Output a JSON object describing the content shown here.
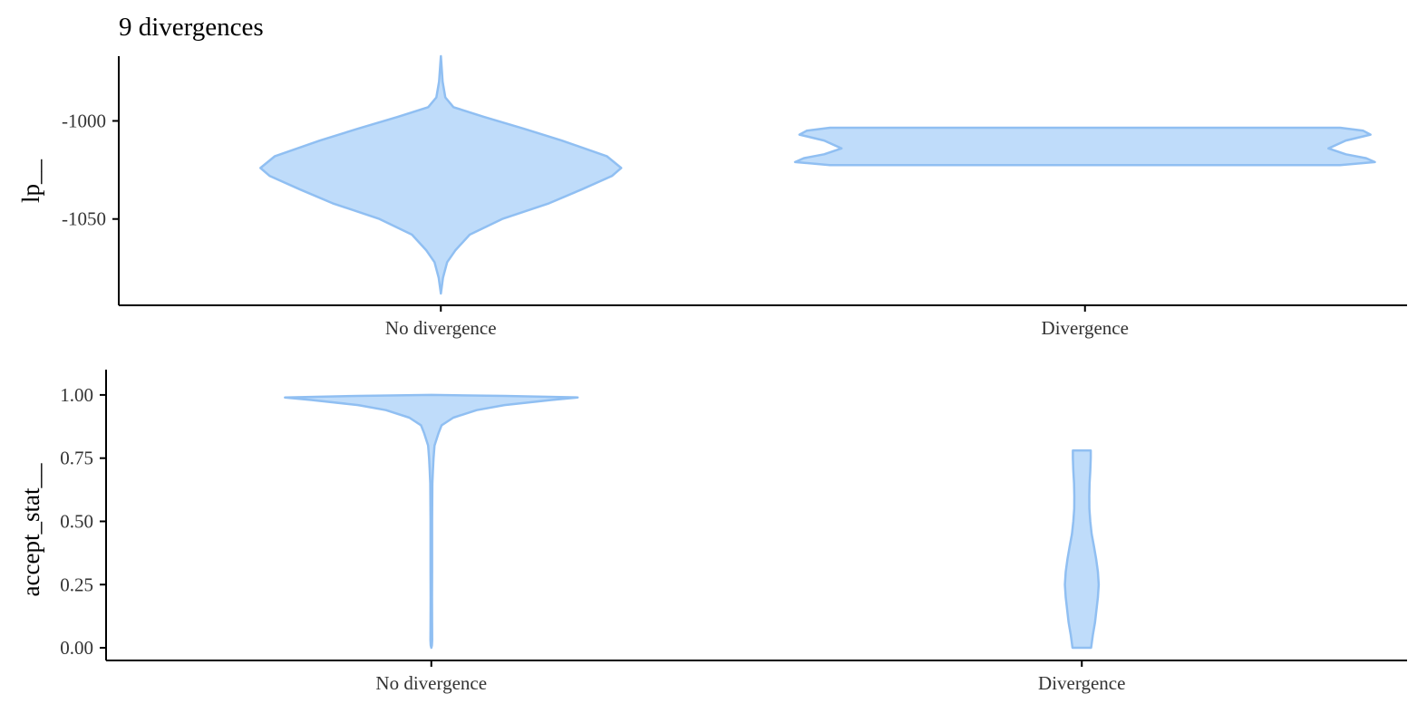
{
  "chart_data": {
    "title": "9 divergences",
    "type": "violin",
    "colors": {
      "fill": "#bfdcfa",
      "outline": "#90bff2",
      "axis": "#000000",
      "text": "#333333"
    },
    "categories": [
      "No divergence",
      "Divergence"
    ],
    "grid": false,
    "panels": [
      {
        "ylabel": "lp__",
        "ylim": [
          -1094,
          -967
        ],
        "yticks": [
          -1000,
          -1050
        ],
        "ytick_labels": [
          "-1000",
          "-1050"
        ],
        "xtick_labels": [
          "No divergence",
          "Divergence"
        ],
        "violins": [
          {
            "category": "No divergence",
            "max_half_width": 0.28,
            "profile": [
              [
                -1088,
                0.0
              ],
              [
                -1080,
                0.012
              ],
              [
                -1072,
                0.035
              ],
              [
                -1066,
                0.08
              ],
              [
                -1058,
                0.16
              ],
              [
                -1050,
                0.34
              ],
              [
                -1042,
                0.6
              ],
              [
                -1035,
                0.78
              ],
              [
                -1028,
                0.95
              ],
              [
                -1024,
                1.0
              ],
              [
                -1018,
                0.92
              ],
              [
                -1010,
                0.67
              ],
              [
                -1004,
                0.46
              ],
              [
                -998,
                0.24
              ],
              [
                -993,
                0.07
              ],
              [
                -988,
                0.025
              ],
              [
                -980,
                0.01
              ],
              [
                -967,
                0.0
              ]
            ]
          },
          {
            "category": "Divergence",
            "max_half_width": 0.45,
            "profile": [
              [
                -1022.5,
                0.88
              ],
              [
                -1021,
                1.0
              ],
              [
                -1019,
                0.97
              ],
              [
                -1017,
                0.9
              ],
              [
                -1014,
                0.84
              ],
              [
                -1010,
                0.9
              ],
              [
                -1007,
                0.985
              ],
              [
                -1005,
                0.96
              ],
              [
                -1003.5,
                0.88
              ]
            ]
          }
        ]
      },
      {
        "ylabel": "accept_stat__",
        "ylim": [
          -0.05,
          1.1
        ],
        "yticks": [
          0.0,
          0.25,
          0.5,
          0.75,
          1.0
        ],
        "ytick_labels": [
          "0.00",
          "0.25",
          "0.50",
          "0.75",
          "1.00"
        ],
        "xtick_labels": [
          "No divergence",
          "Divergence"
        ],
        "violins": [
          {
            "category": "No divergence",
            "max_half_width": 0.225,
            "profile": [
              [
                0.0,
                0.0
              ],
              [
                0.01,
                0.004
              ],
              [
                0.03,
                0.006
              ],
              [
                0.1,
                0.005
              ],
              [
                0.2,
                0.0045
              ],
              [
                0.3,
                0.005
              ],
              [
                0.4,
                0.0055
              ],
              [
                0.5,
                0.005
              ],
              [
                0.6,
                0.0065
              ],
              [
                0.65,
                0.007
              ],
              [
                0.7,
                0.011
              ],
              [
                0.75,
                0.015
              ],
              [
                0.8,
                0.022
              ],
              [
                0.85,
                0.05
              ],
              [
                0.88,
                0.07
              ],
              [
                0.91,
                0.15
              ],
              [
                0.94,
                0.31
              ],
              [
                0.96,
                0.5
              ],
              [
                0.98,
                0.82
              ],
              [
                0.99,
                1.0
              ],
              [
                0.996,
                0.5
              ],
              [
                1.0,
                0.0
              ]
            ]
          },
          {
            "category": "Divergence",
            "max_half_width": 0.026,
            "profile": [
              [
                0.0,
                0.55
              ],
              [
                0.05,
                0.65
              ],
              [
                0.1,
                0.78
              ],
              [
                0.2,
                0.95
              ],
              [
                0.25,
                1.0
              ],
              [
                0.3,
                0.95
              ],
              [
                0.35,
                0.85
              ],
              [
                0.4,
                0.72
              ],
              [
                0.45,
                0.58
              ],
              [
                0.5,
                0.5
              ],
              [
                0.55,
                0.45
              ],
              [
                0.6,
                0.44
              ],
              [
                0.65,
                0.46
              ],
              [
                0.7,
                0.5
              ],
              [
                0.75,
                0.53
              ],
              [
                0.78,
                0.53
              ]
            ]
          }
        ]
      }
    ]
  }
}
